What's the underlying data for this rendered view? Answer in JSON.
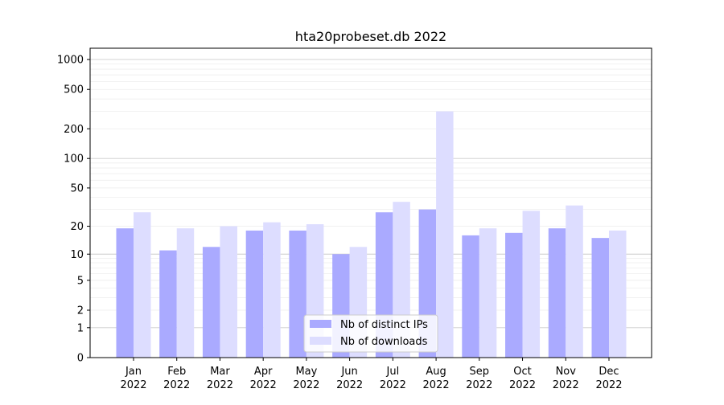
{
  "chart_data": {
    "type": "bar",
    "title": "hta20probeset.db 2022",
    "xlabel": "",
    "ylabel": "",
    "y_scale": "log(1+y)",
    "ylim": [
      0,
      1300
    ],
    "yticks": [
      0,
      1,
      2,
      5,
      10,
      20,
      50,
      100,
      200,
      500,
      1000
    ],
    "ytick_labels": [
      "0",
      "1",
      "2",
      "5",
      "10",
      "20",
      "50",
      "100",
      "200",
      "500",
      "1000"
    ],
    "categories": [
      {
        "month": "Jan",
        "year": "2022"
      },
      {
        "month": "Feb",
        "year": "2022"
      },
      {
        "month": "Mar",
        "year": "2022"
      },
      {
        "month": "Apr",
        "year": "2022"
      },
      {
        "month": "May",
        "year": "2022"
      },
      {
        "month": "Jun",
        "year": "2022"
      },
      {
        "month": "Jul",
        "year": "2022"
      },
      {
        "month": "Aug",
        "year": "2022"
      },
      {
        "month": "Sep",
        "year": "2022"
      },
      {
        "month": "Oct",
        "year": "2022"
      },
      {
        "month": "Nov",
        "year": "2022"
      },
      {
        "month": "Dec",
        "year": "2022"
      }
    ],
    "series": [
      {
        "name": "Nb of distinct IPs",
        "color": "#aaaaff",
        "values": [
          19,
          11,
          12,
          18,
          18,
          10,
          28,
          30,
          16,
          17,
          19,
          15
        ]
      },
      {
        "name": "Nb of downloads",
        "color": "#ddddff",
        "values": [
          28,
          19,
          20,
          22,
          21,
          12,
          36,
          300,
          19,
          29,
          33,
          18
        ]
      }
    ],
    "grid": true,
    "legend_position": "bottom-center"
  }
}
